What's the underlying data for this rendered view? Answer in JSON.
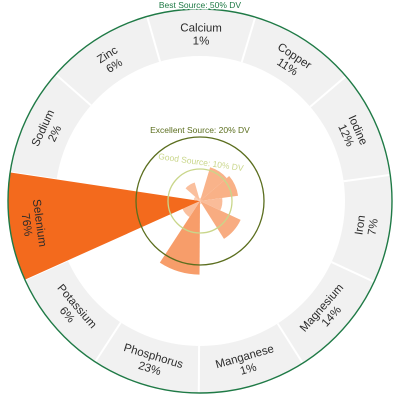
{
  "chart_data": {
    "type": "radial-bar",
    "title": "",
    "value_unit": "% DV",
    "thresholds": [
      {
        "label": "Good Source: 10% DV",
        "value": 10,
        "color": "#c9d68a"
      },
      {
        "label": "Excellent Source: 20% DV",
        "value": 20,
        "color": "#5b6e1e"
      },
      {
        "label": "Best Source: 50% DV",
        "value": 50,
        "color": "#1f7a46"
      }
    ],
    "categories": [
      "Calcium",
      "Copper",
      "Iodine",
      "Iron",
      "Magnesium",
      "Manganese",
      "Phosphorus",
      "Potassium",
      "Selenium",
      "Sodium",
      "Zinc"
    ],
    "values": [
      1,
      11,
      12,
      7,
      14,
      1,
      23,
      6,
      76,
      2,
      6
    ],
    "value_labels": [
      "1%",
      "11%",
      "12%",
      "7%",
      "14%",
      "1%",
      "23%",
      "6%",
      "76%",
      "2%",
      "6%"
    ],
    "colors": {
      "low": "#fde3d3",
      "high": "#f36a1d",
      "ring_fill": "#f1f1f1",
      "ring_divider": "#ffffff",
      "text": "#2b2b2b"
    }
  }
}
